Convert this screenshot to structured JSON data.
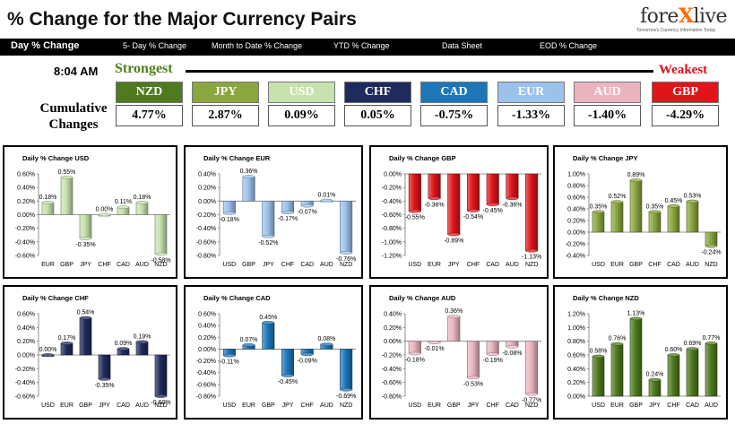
{
  "header": {
    "title": "% Change for the Major Currency Pairs",
    "logo_pre": "fore",
    "logo_x": "X",
    "logo_post": "live",
    "logo_tagline": "Tomorrow's Currency Information Today"
  },
  "nav": [
    {
      "label": "Day % Change"
    },
    {
      "label": "5- Day % Change"
    },
    {
      "label": "Month to Date % Change"
    },
    {
      "label": "YTD % Change"
    },
    {
      "label": "Data Sheet"
    },
    {
      "label": "EOD % Change"
    }
  ],
  "ranking": {
    "time": "8:04 AM",
    "strongest_label": "Strongest",
    "weakest_label": "Weakest",
    "cumulative_label": "Cumulative Changes",
    "tiles": [
      {
        "currency": "NZD",
        "value": "4.77%",
        "color": "#4f7a1f"
      },
      {
        "currency": "JPY",
        "value": "2.87%",
        "color": "#8aa63e"
      },
      {
        "currency": "USD",
        "value": "0.09%",
        "color": "#c7e2ae"
      },
      {
        "currency": "CHF",
        "value": "0.05%",
        "color": "#1f2b5c"
      },
      {
        "currency": "CAD",
        "value": "-0.75%",
        "color": "#1e76b8"
      },
      {
        "currency": "EUR",
        "value": "-1.33%",
        "color": "#9cc2ec"
      },
      {
        "currency": "AUD",
        "value": "-1.40%",
        "color": "#ebb5c0"
      },
      {
        "currency": "GBP",
        "value": "-4.29%",
        "color": "#e0141a"
      }
    ]
  },
  "chart_data": [
    {
      "type": "bar",
      "title": "Daily % Change USD",
      "color": "#c7e2ae",
      "categories": [
        "EUR",
        "GBP",
        "JPY",
        "CHF",
        "CAD",
        "AUD",
        "NZD"
      ],
      "values": [
        0.18,
        0.55,
        -0.35,
        0.0,
        0.11,
        0.18,
        -0.58
      ],
      "labels": [
        "0.18%",
        "0.55%",
        "-0.35%",
        "0.00%",
        "0.11%",
        "0.18%",
        "-0.58%"
      ],
      "ylim": [
        -0.6,
        0.6
      ],
      "step": 0.2,
      "yticks": [
        "0.60%",
        "0.40%",
        "0.20%",
        "0.00%",
        "-0.20%",
        "-0.40%",
        "-0.60%"
      ]
    },
    {
      "type": "bar",
      "title": "Daily % Change EUR",
      "color": "#9cc2ec",
      "categories": [
        "USD",
        "GBP",
        "JPY",
        "CHF",
        "CAD",
        "AUD",
        "NZD"
      ],
      "values": [
        -0.18,
        0.36,
        -0.52,
        -0.17,
        -0.07,
        0.01,
        -0.76
      ],
      "labels": [
        "-0.18%",
        "0.36%",
        "-0.52%",
        "-0.17%",
        "-0.07%",
        "0.01%",
        "-0.76%"
      ],
      "ylim": [
        -0.8,
        0.4
      ],
      "step": 0.2,
      "yticks": [
        "0.40%",
        "0.20%",
        "0.00%",
        "-0.20%",
        "-0.40%",
        "-0.60%",
        "-0.80%"
      ]
    },
    {
      "type": "bar",
      "title": "Daily % Change GBP",
      "color": "#e0141a",
      "categories": [
        "USD",
        "EUR",
        "JPY",
        "CHF",
        "CAD",
        "AUD",
        "NZD"
      ],
      "values": [
        -0.55,
        -0.36,
        -0.89,
        -0.54,
        -0.45,
        -0.36,
        -1.13
      ],
      "labels": [
        "-0.55%",
        "-0.36%",
        "-0.89%",
        "-0.54%",
        "-0.45%",
        "-0.36%",
        "-1.13%"
      ],
      "ylim": [
        -1.2,
        0.0
      ],
      "step": 0.2,
      "yticks": [
        "0.00%",
        "-0.20%",
        "-0.40%",
        "-0.60%",
        "-0.80%",
        "-1.00%",
        "-1.20%"
      ]
    },
    {
      "type": "bar",
      "title": "Daily % Change JPY",
      "color": "#8aa63e",
      "categories": [
        "USD",
        "EUR",
        "GBP",
        "CHF",
        "CAD",
        "AUD",
        "NZD"
      ],
      "values": [
        0.35,
        0.52,
        0.89,
        0.35,
        0.45,
        0.53,
        -0.24
      ],
      "labels": [
        "0.35%",
        "0.52%",
        "0.89%",
        "0.35%",
        "0.45%",
        "0.53%",
        "-0.24%"
      ],
      "ylim": [
        -0.4,
        1.0
      ],
      "step": 0.2,
      "yticks": [
        "1.00%",
        "0.80%",
        "0.60%",
        "0.40%",
        "0.20%",
        "0.00%",
        "-0.20%",
        "-0.40%"
      ]
    },
    {
      "type": "bar",
      "title": "Daily % Change CHF",
      "color": "#1f2b5c",
      "categories": [
        "USD",
        "EUR",
        "GBP",
        "JPY",
        "CAD",
        "AUD",
        "NZD"
      ],
      "values": [
        0.0,
        0.17,
        0.54,
        -0.35,
        0.09,
        0.19,
        -0.6
      ],
      "labels": [
        "0.00%",
        "0.17%",
        "0.54%",
        "-0.35%",
        "0.09%",
        "0.19%",
        "-0.60%"
      ],
      "ylim": [
        -0.6,
        0.6
      ],
      "step": 0.2,
      "yticks": [
        "0.60%",
        "0.40%",
        "0.20%",
        "0.00%",
        "-0.20%",
        "-0.40%",
        "-0.60%"
      ]
    },
    {
      "type": "bar",
      "title": "Daily % Change CAD",
      "color": "#1e76b8",
      "categories": [
        "USD",
        "EUR",
        "GBP",
        "JPY",
        "CHF",
        "AUD",
        "NZD"
      ],
      "values": [
        -0.11,
        0.07,
        0.45,
        -0.45,
        -0.09,
        0.08,
        -0.69
      ],
      "labels": [
        "-0.11%",
        "0.07%",
        "0.45%",
        "-0.45%",
        "-0.09%",
        "0.08%",
        "-0.69%"
      ],
      "ylim": [
        -0.8,
        0.6
      ],
      "step": 0.2,
      "yticks": [
        "0.60%",
        "0.40%",
        "0.20%",
        "0.00%",
        "-0.20%",
        "-0.40%",
        "-0.60%",
        "-0.80%"
      ]
    },
    {
      "type": "bar",
      "title": "Daily % Change AUD",
      "color": "#ebb5c0",
      "categories": [
        "USD",
        "EUR",
        "GBP",
        "JPY",
        "CHF",
        "CAD",
        "NZD"
      ],
      "values": [
        -0.18,
        -0.01,
        0.36,
        -0.53,
        -0.19,
        -0.08,
        -0.77
      ],
      "labels": [
        "-0.18%",
        "-0.01%",
        "0.36%",
        "-0.53%",
        "-0.19%",
        "-0.08%",
        "-0.77%"
      ],
      "ylim": [
        -0.8,
        0.4
      ],
      "step": 0.2,
      "yticks": [
        "0.40%",
        "0.20%",
        "0.00%",
        "-0.20%",
        "-0.40%",
        "-0.60%",
        "-0.80%"
      ]
    },
    {
      "type": "bar",
      "title": "Daily % Change NZD",
      "color": "#4f7a1f",
      "categories": [
        "USD",
        "EUR",
        "GBP",
        "JPY",
        "CHF",
        "CAD",
        "AUD"
      ],
      "values": [
        0.58,
        0.76,
        1.13,
        0.24,
        0.6,
        0.69,
        0.77
      ],
      "labels": [
        "0.58%",
        "0.76%",
        "1.13%",
        "0.24%",
        "0.60%",
        "0.69%",
        "0.77%"
      ],
      "ylim": [
        0.0,
        1.2
      ],
      "step": 0.2,
      "yticks": [
        "1.20%",
        "1.00%",
        "0.80%",
        "0.60%",
        "0.40%",
        "0.20%",
        "0.00%"
      ]
    }
  ]
}
